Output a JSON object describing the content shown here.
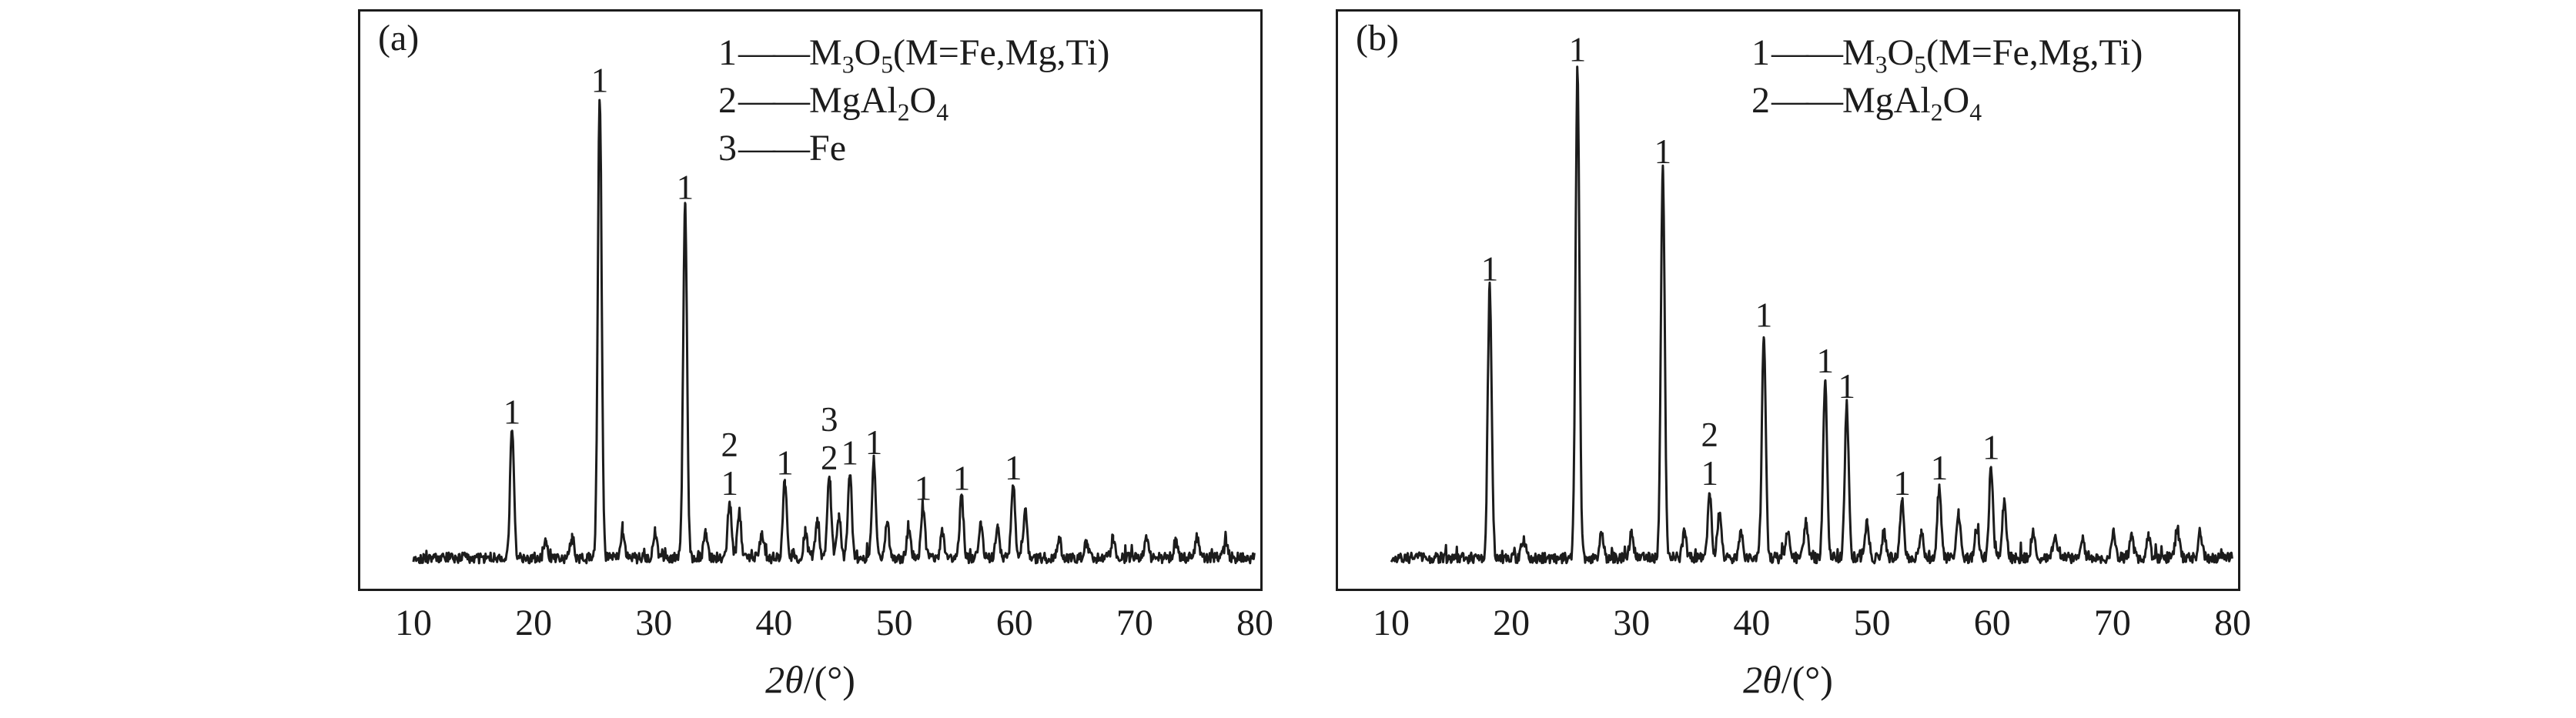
{
  "page": {
    "background": "#ffffff",
    "ink": "#1c1c1c"
  },
  "chart_data": [
    {
      "type": "line",
      "subtype": "xrd-pattern",
      "panel_tag": "(a)",
      "xlabel": "2θ/(°)",
      "xlabel_parts": [
        [
          "i",
          "2θ"
        ],
        [
          "t",
          "/(°)"
        ]
      ],
      "xlim": [
        10,
        80
      ],
      "xticks": [
        "10",
        "20",
        "30",
        "40",
        "50",
        "60",
        "70",
        "80"
      ],
      "grid": false,
      "yaxis_ticks": "none (relative intensity)",
      "legend_position": "top-center",
      "noise_seed": 101,
      "legend": [
        {
          "num": "1",
          "dash": "——",
          "formula_text": "M3O5(M=Fe,Mg,Ti)",
          "formula_parts": [
            [
              "t",
              "M"
            ],
            [
              "s",
              "3"
            ],
            [
              "t",
              "O"
            ],
            [
              "s",
              "5"
            ],
            [
              "t",
              "(M=Fe,Mg,Ti)"
            ]
          ]
        },
        {
          "num": "2",
          "dash": "——",
          "formula_text": "MgAl2O4",
          "formula_parts": [
            [
              "t",
              "MgAl"
            ],
            [
              "s",
              "2"
            ],
            [
              "t",
              "O"
            ],
            [
              "s",
              "4"
            ]
          ]
        },
        {
          "num": "3",
          "dash": "——",
          "formula_text": "Fe",
          "formula_parts": [
            [
              "t",
              "Fe"
            ]
          ]
        }
      ],
      "peaks": [
        {
          "two_theta": 18.2,
          "rel_intensity": 0.25,
          "labels": [
            "1"
          ]
        },
        {
          "two_theta": 21.0,
          "rel_intensity": 0.04,
          "labels": []
        },
        {
          "two_theta": 23.2,
          "rel_intensity": 0.04,
          "labels": []
        },
        {
          "two_theta": 25.5,
          "rel_intensity": 0.9,
          "labels": [
            "1"
          ]
        },
        {
          "two_theta": 27.4,
          "rel_intensity": 0.05,
          "labels": []
        },
        {
          "two_theta": 30.1,
          "rel_intensity": 0.05,
          "labels": []
        },
        {
          "two_theta": 32.6,
          "rel_intensity": 0.69,
          "labels": [
            "1"
          ]
        },
        {
          "two_theta": 34.3,
          "rel_intensity": 0.05,
          "labels": []
        },
        {
          "two_theta": 36.3,
          "rel_intensity": 0.11,
          "labels": [
            "2",
            "1"
          ]
        },
        {
          "two_theta": 37.1,
          "rel_intensity": 0.09,
          "labels": []
        },
        {
          "two_theta": 39.0,
          "rel_intensity": 0.05,
          "labels": []
        },
        {
          "two_theta": 40.9,
          "rel_intensity": 0.15,
          "labels": [
            "1"
          ]
        },
        {
          "two_theta": 42.6,
          "rel_intensity": 0.05,
          "labels": []
        },
        {
          "two_theta": 43.6,
          "rel_intensity": 0.07,
          "labels": []
        },
        {
          "two_theta": 44.6,
          "rel_intensity": 0.16,
          "labels": [
            "3",
            "2"
          ]
        },
        {
          "two_theta": 45.4,
          "rel_intensity": 0.08,
          "labels": []
        },
        {
          "two_theta": 46.3,
          "rel_intensity": 0.17,
          "labels": [
            "1"
          ]
        },
        {
          "two_theta": 48.3,
          "rel_intensity": 0.19,
          "labels": [
            "1"
          ]
        },
        {
          "two_theta": 49.4,
          "rel_intensity": 0.07,
          "labels": []
        },
        {
          "two_theta": 51.2,
          "rel_intensity": 0.06,
          "labels": []
        },
        {
          "two_theta": 52.4,
          "rel_intensity": 0.1,
          "labels": [
            "1"
          ]
        },
        {
          "two_theta": 54.0,
          "rel_intensity": 0.05,
          "labels": []
        },
        {
          "two_theta": 55.6,
          "rel_intensity": 0.12,
          "labels": [
            "1"
          ]
        },
        {
          "two_theta": 57.2,
          "rel_intensity": 0.07,
          "labels": []
        },
        {
          "two_theta": 58.6,
          "rel_intensity": 0.06,
          "labels": []
        },
        {
          "two_theta": 59.9,
          "rel_intensity": 0.14,
          "labels": [
            "1"
          ]
        },
        {
          "two_theta": 60.9,
          "rel_intensity": 0.09,
          "labels": []
        },
        {
          "two_theta": 63.7,
          "rel_intensity": 0.04,
          "labels": []
        },
        {
          "two_theta": 66.0,
          "rel_intensity": 0.03,
          "labels": []
        },
        {
          "two_theta": 68.2,
          "rel_intensity": 0.04,
          "labels": []
        },
        {
          "two_theta": 71.0,
          "rel_intensity": 0.04,
          "labels": []
        },
        {
          "two_theta": 73.4,
          "rel_intensity": 0.03,
          "labels": []
        },
        {
          "two_theta": 75.2,
          "rel_intensity": 0.04,
          "labels": []
        },
        {
          "two_theta": 77.6,
          "rel_intensity": 0.03,
          "labels": []
        }
      ]
    },
    {
      "type": "line",
      "subtype": "xrd-pattern",
      "panel_tag": "(b)",
      "xlabel": "2θ/(°)",
      "xlabel_parts": [
        [
          "i",
          "2θ"
        ],
        [
          "t",
          "/(°)"
        ]
      ],
      "xlim": [
        10,
        80
      ],
      "xticks": [
        "10",
        "20",
        "30",
        "40",
        "50",
        "60",
        "70",
        "80"
      ],
      "grid": false,
      "yaxis_ticks": "none (relative intensity)",
      "legend_position": "top-center",
      "noise_seed": 202,
      "legend": [
        {
          "num": "1",
          "dash": "——",
          "formula_text": "M3O5(M=Fe,Mg,Ti)",
          "formula_parts": [
            [
              "t",
              "M"
            ],
            [
              "s",
              "3"
            ],
            [
              "t",
              "O"
            ],
            [
              "s",
              "5"
            ],
            [
              "t",
              "(M=Fe,Mg,Ti)"
            ]
          ]
        },
        {
          "num": "2",
          "dash": "——",
          "formula_text": "MgAl2O4",
          "formula_parts": [
            [
              "t",
              "MgAl"
            ],
            [
              "s",
              "2"
            ],
            [
              "t",
              "O"
            ],
            [
              "s",
              "4"
            ]
          ]
        }
      ],
      "peaks": [
        {
          "two_theta": 18.2,
          "rel_intensity": 0.53,
          "labels": [
            "1"
          ]
        },
        {
          "two_theta": 21.0,
          "rel_intensity": 0.04,
          "labels": []
        },
        {
          "two_theta": 25.5,
          "rel_intensity": 0.96,
          "labels": [
            "1"
          ]
        },
        {
          "two_theta": 27.5,
          "rel_intensity": 0.05,
          "labels": []
        },
        {
          "two_theta": 30.0,
          "rel_intensity": 0.05,
          "labels": []
        },
        {
          "two_theta": 32.6,
          "rel_intensity": 0.76,
          "labels": [
            "1"
          ]
        },
        {
          "two_theta": 34.4,
          "rel_intensity": 0.05,
          "labels": []
        },
        {
          "two_theta": 36.5,
          "rel_intensity": 0.13,
          "labels": [
            "2",
            "1"
          ]
        },
        {
          "two_theta": 37.3,
          "rel_intensity": 0.09,
          "labels": []
        },
        {
          "two_theta": 39.1,
          "rel_intensity": 0.05,
          "labels": []
        },
        {
          "two_theta": 41.0,
          "rel_intensity": 0.44,
          "labels": [
            "1"
          ]
        },
        {
          "two_theta": 43.0,
          "rel_intensity": 0.05,
          "labels": []
        },
        {
          "two_theta": 44.5,
          "rel_intensity": 0.07,
          "labels": []
        },
        {
          "two_theta": 46.1,
          "rel_intensity": 0.35,
          "labels": [
            "1"
          ]
        },
        {
          "two_theta": 47.9,
          "rel_intensity": 0.3,
          "labels": [
            "1"
          ]
        },
        {
          "two_theta": 49.6,
          "rel_intensity": 0.07,
          "labels": []
        },
        {
          "two_theta": 51.0,
          "rel_intensity": 0.05,
          "labels": []
        },
        {
          "two_theta": 52.5,
          "rel_intensity": 0.11,
          "labels": [
            "1"
          ]
        },
        {
          "two_theta": 54.1,
          "rel_intensity": 0.05,
          "labels": []
        },
        {
          "two_theta": 55.6,
          "rel_intensity": 0.14,
          "labels": [
            "1"
          ]
        },
        {
          "two_theta": 57.2,
          "rel_intensity": 0.09,
          "labels": []
        },
        {
          "two_theta": 58.7,
          "rel_intensity": 0.06,
          "labels": []
        },
        {
          "two_theta": 59.9,
          "rel_intensity": 0.18,
          "labels": [
            "1"
          ]
        },
        {
          "two_theta": 61.0,
          "rel_intensity": 0.11,
          "labels": []
        },
        {
          "two_theta": 63.4,
          "rel_intensity": 0.05,
          "labels": []
        },
        {
          "two_theta": 65.2,
          "rel_intensity": 0.04,
          "labels": []
        },
        {
          "two_theta": 67.5,
          "rel_intensity": 0.04,
          "labels": []
        },
        {
          "two_theta": 70.1,
          "rel_intensity": 0.05,
          "labels": []
        },
        {
          "two_theta": 71.6,
          "rel_intensity": 0.04,
          "labels": []
        },
        {
          "two_theta": 73.0,
          "rel_intensity": 0.04,
          "labels": []
        },
        {
          "two_theta": 75.4,
          "rel_intensity": 0.06,
          "labels": []
        },
        {
          "two_theta": 77.3,
          "rel_intensity": 0.05,
          "labels": []
        }
      ]
    }
  ]
}
